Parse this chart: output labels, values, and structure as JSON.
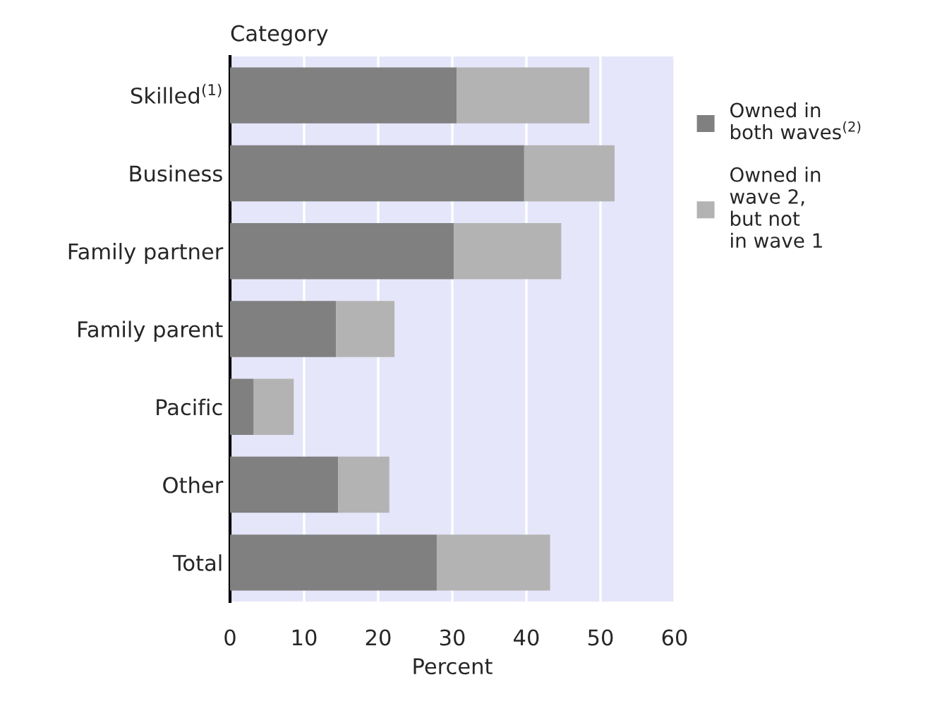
{
  "chart_data": {
    "type": "bar",
    "orientation": "horizontal",
    "stacked": true,
    "ylabel": "Category",
    "xlabel": "Percent",
    "categories": [
      "Skilled$^{(1)}$",
      "Business",
      "Family partner",
      "Family parent",
      "Pacific",
      "Other",
      "Total"
    ],
    "series": [
      {
        "name": "Owned in\nboth waves$^{(2)}$",
        "color": "#808080",
        "values": [
          30.6,
          39.7,
          30.2,
          14.3,
          3.2,
          14.6,
          27.9
        ]
      },
      {
        "name": "Owned in\nwave 2,\nbut not\nin wave 1",
        "color": "#b3b3b3",
        "values": [
          17.9,
          12.2,
          14.5,
          7.9,
          5.4,
          6.9,
          15.3
        ]
      }
    ],
    "xlim": [
      0,
      60
    ],
    "xticks": [
      0,
      10,
      20,
      30,
      40,
      50,
      60
    ],
    "grid": "x",
    "legend": "right"
  }
}
